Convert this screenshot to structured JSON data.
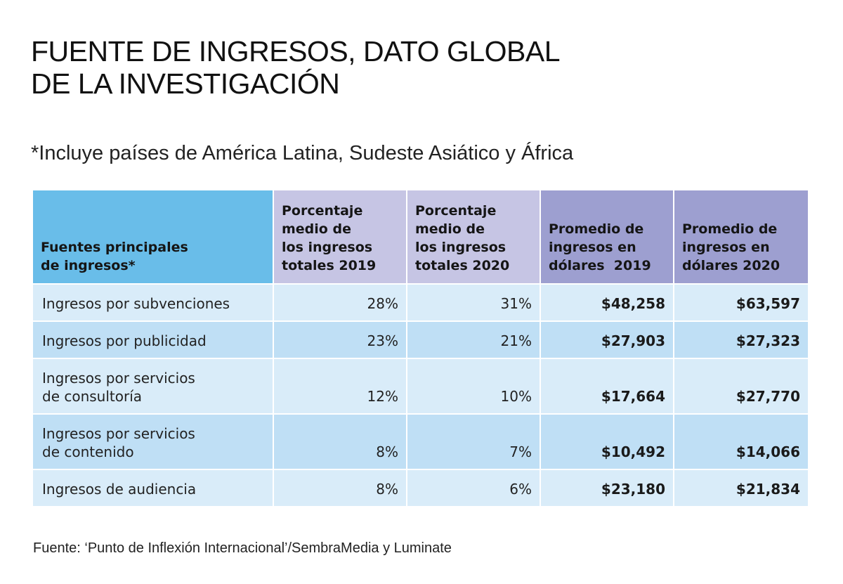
{
  "title": {
    "line1": "FUENTE DE INGRESOS, DATO GLOBAL",
    "line2": "DE LA INVESTIGACIÓN"
  },
  "subtitle": "*Incluye países de América Latina, Sudeste Asiático y África",
  "source": "Fuente: ‘Punto de Inflexión Internacional’/SembraMedia y Luminate",
  "colors": {
    "header_sources": "#69bde9",
    "header_percent": "#c6c5e4",
    "header_usd": "#9d9fd0",
    "row_light": "#d9ecf9",
    "row_dark": "#bfdff5"
  },
  "chart_data": {
    "type": "table",
    "title": "FUENTE DE INGRESOS, DATO GLOBAL DE LA INVESTIGACIÓN",
    "columns": [
      [
        "Fuentes principales",
        "de ingresos*"
      ],
      [
        "Porcentaje",
        "medio de",
        "los ingresos",
        "totales 2019"
      ],
      [
        "Porcentaje",
        "medio de",
        "los ingresos",
        "totales 2020"
      ],
      [
        "Promedio de",
        "ingresos en",
        "dólares  2019"
      ],
      [
        "Promedio de",
        "ingresos en",
        "dólares 2020"
      ]
    ],
    "rows": [
      {
        "source": [
          "Ingresos por subvenciones"
        ],
        "pct_2019": "28%",
        "pct_2020": "31%",
        "usd_2019": "$48,258",
        "usd_2020": "$63,597"
      },
      {
        "source": [
          "Ingresos por publicidad"
        ],
        "pct_2019": "23%",
        "pct_2020": "21%",
        "usd_2019": "$27,903",
        "usd_2020": "$27,323"
      },
      {
        "source": [
          "Ingresos por servicios",
          "de consultoría"
        ],
        "pct_2019": "12%",
        "pct_2020": "10%",
        "usd_2019": "$17,664",
        "usd_2020": "$27,770"
      },
      {
        "source": [
          "Ingresos por servicios",
          "de contenido"
        ],
        "pct_2019": "8%",
        "pct_2020": "7%",
        "usd_2019": "$10,492",
        "usd_2020": "$14,066"
      },
      {
        "source": [
          "Ingresos de audiencia"
        ],
        "pct_2019": "8%",
        "pct_2020": "6%",
        "usd_2019": "$23,180",
        "usd_2020": "$21,834"
      }
    ]
  }
}
